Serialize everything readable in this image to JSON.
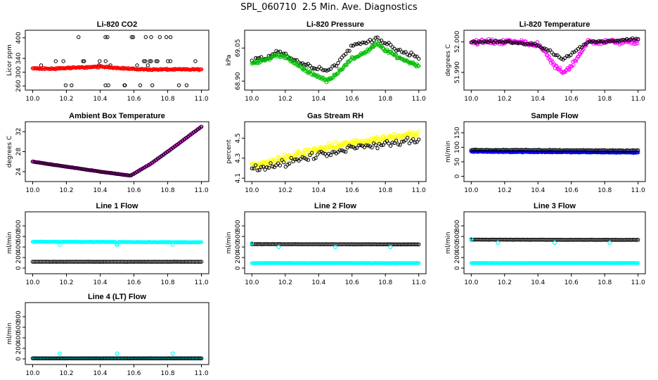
{
  "page": {
    "title": "SPL_060710  2.5 Min. Ave. Diagnostics"
  },
  "colors": {
    "black": "#000000",
    "red": "#ff0000",
    "green": "#00bb00",
    "magenta": "#ff00ff",
    "yellow": "#ffff00",
    "blue": "#0000ff",
    "cyan": "#00ffff"
  },
  "chart_data": [
    {
      "id": "co2",
      "type": "scatter",
      "title": "Li-820 CO2",
      "ylabel": "Licor ppm",
      "xlim": [
        10.0,
        11.0
      ],
      "ylim": [
        255,
        415
      ],
      "xticks": [
        "10.0",
        "10.2",
        "10.4",
        "10.6",
        "10.8",
        "11.0"
      ],
      "yticks": [
        "260",
        "300",
        "340",
        "400"
      ],
      "series": [
        {
          "name": "secondary",
          "color": "#000000",
          "style": "points",
          "pattern": "co2-outliers",
          "base": [
            402,
            332,
            320,
            262
          ]
        },
        {
          "name": "primary",
          "color": "#ff0000",
          "style": "band",
          "x": [
            10.0,
            10.1,
            10.2,
            10.3,
            10.4,
            10.5,
            10.6,
            10.7,
            10.8,
            10.9,
            11.0
          ],
          "y": [
            311,
            310,
            312,
            314,
            316,
            313,
            309,
            308,
            308,
            308,
            308
          ],
          "noise": 3
        }
      ]
    },
    {
      "id": "pressure",
      "type": "scatter",
      "title": "Li-820 Pressure",
      "ylabel": "kPa",
      "xlim": [
        10.0,
        11.0
      ],
      "ylim": [
        68.87,
        69.12
      ],
      "xticks": [
        "10.0",
        "10.2",
        "10.4",
        "10.6",
        "10.8",
        "11.0"
      ],
      "yticks": [
        "68.90",
        "69.05"
      ],
      "series": [
        {
          "name": "secondary",
          "color": "#000000",
          "style": "points",
          "x": [
            10.0,
            10.1,
            10.15,
            10.2,
            10.3,
            10.4,
            10.45,
            10.5,
            10.6,
            10.7,
            10.75,
            10.8,
            10.9,
            11.0
          ],
          "y": [
            68.99,
            69.01,
            69.04,
            69.02,
            68.98,
            68.96,
            68.95,
            68.97,
            69.06,
            69.08,
            69.1,
            69.07,
            69.03,
            69.01
          ],
          "noise": 0.015
        },
        {
          "name": "primary",
          "color": "#00bb00",
          "style": "band",
          "x": [
            10.0,
            10.1,
            10.15,
            10.2,
            10.3,
            10.4,
            10.45,
            10.5,
            10.6,
            10.7,
            10.75,
            10.8,
            10.9,
            11.0
          ],
          "y": [
            68.98,
            69.0,
            69.02,
            69.01,
            68.96,
            68.92,
            68.9,
            68.93,
            69.0,
            69.04,
            69.07,
            69.04,
            69.0,
            68.97
          ],
          "noise": 0.012
        }
      ]
    },
    {
      "id": "temperature",
      "type": "scatter",
      "title": "Li-820 Temperature",
      "ylabel": "degrees C",
      "xlim": [
        10.0,
        11.0
      ],
      "ylim": [
        51.985,
        52.003
      ],
      "xticks": [
        "10.0",
        "10.2",
        "10.4",
        "10.6",
        "10.8",
        "11.0"
      ],
      "yticks": [
        "51.990",
        "52.000"
      ],
      "series": [
        {
          "name": "primary",
          "color": "#ff00ff",
          "style": "band",
          "x": [
            10.0,
            10.2,
            10.3,
            10.4,
            10.45,
            10.5,
            10.55,
            10.6,
            10.65,
            10.7,
            10.8,
            11.0
          ],
          "y": [
            52.0,
            52.0,
            52.0,
            51.999,
            51.996,
            51.992,
            51.99,
            51.992,
            51.996,
            52.0,
            52.0,
            52.0
          ],
          "noise": 0.0012
        },
        {
          "name": "secondary",
          "color": "#000000",
          "style": "points",
          "x": [
            10.0,
            10.2,
            10.4,
            10.5,
            10.55,
            10.6,
            10.7,
            10.8,
            11.0
          ],
          "y": [
            52.0,
            52.0,
            51.999,
            51.996,
            51.994,
            51.996,
            52.0,
            52.0,
            52.001
          ],
          "noise": 0.0006
        }
      ]
    },
    {
      "id": "ambient",
      "type": "scatter",
      "title": "Ambient Box Temperature",
      "ylabel": "degrees C",
      "xlim": [
        10.0,
        11.0
      ],
      "ylim": [
        22.5,
        33.5
      ],
      "xticks": [
        "10.0",
        "10.2",
        "10.4",
        "10.6",
        "10.8",
        "11.0"
      ],
      "yticks": [
        "24",
        "28",
        "32"
      ],
      "series": [
        {
          "name": "primary",
          "color": "#ff00ff",
          "style": "band",
          "x": [
            10.0,
            10.2,
            10.4,
            10.58,
            10.7,
            10.8,
            11.0
          ],
          "y": [
            26.0,
            25.0,
            24.0,
            23.2,
            25.6,
            28.0,
            33.0
          ],
          "noise": 0.08
        },
        {
          "name": "secondary",
          "color": "#000000",
          "style": "points",
          "x": [
            10.0,
            10.2,
            10.4,
            10.58,
            10.7,
            10.8,
            11.0
          ],
          "y": [
            26.0,
            25.0,
            24.0,
            23.2,
            25.6,
            28.0,
            33.0
          ],
          "noise": 0.05
        }
      ]
    },
    {
      "id": "rh",
      "type": "scatter",
      "title": "Gas Stream RH",
      "ylabel": "percent",
      "xlim": [
        10.0,
        11.0
      ],
      "ylim": [
        4.09,
        4.64
      ],
      "xticks": [
        "10.0",
        "10.2",
        "10.4",
        "10.6",
        "10.8",
        "11.0"
      ],
      "yticks": [
        "4.1",
        "4.3",
        "4.5"
      ],
      "series": [
        {
          "name": "primary",
          "color": "#ffff00",
          "style": "band",
          "x": [
            10.0,
            10.2,
            10.4,
            10.6,
            10.8,
            11.0
          ],
          "y": [
            4.22,
            4.3,
            4.39,
            4.45,
            4.5,
            4.56
          ],
          "noise": 0.05
        },
        {
          "name": "secondary",
          "color": "#000000",
          "style": "points",
          "x": [
            10.0,
            10.2,
            10.4,
            10.6,
            10.8,
            11.0
          ],
          "y": [
            4.18,
            4.25,
            4.33,
            4.4,
            4.45,
            4.48
          ],
          "noise": 0.05
        }
      ]
    },
    {
      "id": "sample",
      "type": "scatter",
      "title": "Sample Flow",
      "ylabel": "ml/min",
      "xlim": [
        10.0,
        11.0
      ],
      "ylim": [
        -10,
        180
      ],
      "xticks": [
        "10.0",
        "10.2",
        "10.4",
        "10.6",
        "10.8",
        "11.0"
      ],
      "yticks": [
        "0",
        "50",
        "100",
        "150"
      ],
      "series": [
        {
          "name": "primary",
          "color": "#0000ff",
          "style": "band",
          "x": [
            10.0,
            11.0
          ],
          "y": [
            85,
            82
          ],
          "noise": 2
        },
        {
          "name": "secondary",
          "color": "#000000",
          "style": "points",
          "x": [
            10.0,
            11.0
          ],
          "y": [
            91,
            89
          ],
          "noise": 2
        }
      ]
    },
    {
      "id": "line1",
      "type": "scatter",
      "title": "Line 1 Flow",
      "ylabel": "ml/min",
      "xlim": [
        10.0,
        11.0
      ],
      "ylim": [
        -60,
        1020
      ],
      "xticks": [
        "10.0",
        "10.2",
        "10.4",
        "10.6",
        "10.8",
        "11.0"
      ],
      "yticks": [
        "0",
        "200",
        "400",
        "600",
        "800"
      ],
      "series": [
        {
          "name": "primary",
          "color": "#00ffff",
          "style": "band",
          "x": [
            10.0,
            11.0
          ],
          "y": [
            500,
            490
          ],
          "noise": 6,
          "dips": [
            10.16,
            10.5,
            10.83
          ],
          "dip_to": 440
        },
        {
          "name": "secondary",
          "color": "#000000",
          "style": "points",
          "x": [
            10.0,
            11.0
          ],
          "y": [
            120,
            120
          ],
          "noise": 2
        }
      ]
    },
    {
      "id": "line2",
      "type": "scatter",
      "title": "Line 2 Flow",
      "ylabel": "ml/min",
      "xlim": [
        10.0,
        11.0
      ],
      "ylim": [
        -60,
        1020
      ],
      "xticks": [
        "10.0",
        "10.2",
        "10.4",
        "10.6",
        "10.8",
        "11.0"
      ],
      "yticks": [
        "0",
        "200",
        "400",
        "600",
        "800"
      ],
      "series": [
        {
          "name": "primary",
          "color": "#00ffff",
          "style": "band",
          "x": [
            10.0,
            11.0
          ],
          "y": [
            95,
            95
          ],
          "noise": 4
        },
        {
          "name": "secondary",
          "color": "#000000",
          "style": "points",
          "x": [
            10.0,
            11.0
          ],
          "y": [
            455,
            450
          ],
          "noise": 3
        },
        {
          "name": "spikes",
          "color": "#00ffff",
          "style": "spikes",
          "x": [
            10.0,
            10.16,
            10.5,
            10.83
          ],
          "y": [
            470,
            400,
            400,
            400
          ]
        }
      ]
    },
    {
      "id": "line3",
      "type": "scatter",
      "title": "Line 3 Flow",
      "ylabel": "ml/min",
      "xlim": [
        10.0,
        11.0
      ],
      "ylim": [
        -60,
        1020
      ],
      "xticks": [
        "10.0",
        "10.2",
        "10.4",
        "10.6",
        "10.8",
        "11.0"
      ],
      "yticks": [
        "0",
        "200",
        "400",
        "600",
        "800"
      ],
      "series": [
        {
          "name": "primary",
          "color": "#00ffff",
          "style": "band",
          "x": [
            10.0,
            11.0
          ],
          "y": [
            95,
            95
          ],
          "noise": 4
        },
        {
          "name": "secondary",
          "color": "#000000",
          "style": "points",
          "x": [
            10.0,
            11.0
          ],
          "y": [
            540,
            535
          ],
          "noise": 3
        },
        {
          "name": "spikes",
          "color": "#00ffff",
          "style": "spikes",
          "x": [
            10.0,
            10.16,
            10.5,
            10.83
          ],
          "y": [
            550,
            480,
            480,
            480
          ]
        }
      ]
    },
    {
      "id": "line4",
      "type": "scatter",
      "title": "Line 4 (LT) Flow",
      "ylabel": "ml/min",
      "xlim": [
        10.0,
        11.0
      ],
      "ylim": [
        -60,
        1020
      ],
      "xticks": [
        "10.0",
        "10.2",
        "10.4",
        "10.6",
        "10.8",
        "11.0"
      ],
      "yticks": [
        "0",
        "200",
        "400",
        "600",
        "800"
      ],
      "series": [
        {
          "name": "primary",
          "color": "#00ffff",
          "style": "band",
          "x": [
            10.0,
            11.0
          ],
          "y": [
            10,
            10
          ],
          "noise": 3
        },
        {
          "name": "secondary",
          "color": "#000000",
          "style": "points",
          "x": [
            10.0,
            11.0
          ],
          "y": [
            10,
            10
          ],
          "noise": 2
        },
        {
          "name": "spikes",
          "color": "#00ffff",
          "style": "spikes",
          "x": [
            10.16,
            10.5,
            10.83
          ],
          "y": [
            100,
            100,
            100
          ]
        }
      ]
    }
  ]
}
